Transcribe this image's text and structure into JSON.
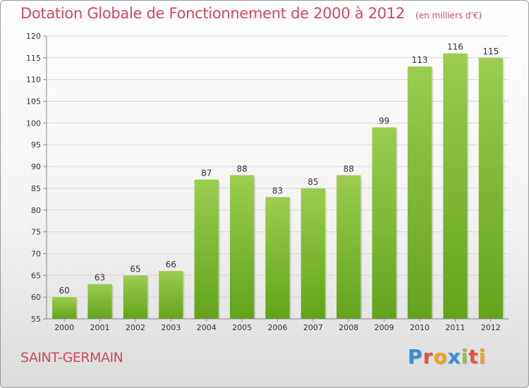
{
  "header": {
    "title": "Dotation Globale de Fonctionnement de 2000 à 2012",
    "unit": "(en milliers d'€)"
  },
  "footer": {
    "commune": "SAINT-GERMAIN",
    "logo": [
      "P",
      "r",
      "o",
      "x",
      "i",
      "t",
      "i"
    ],
    "logo_colors": [
      "#3a8fd6",
      "#e8533f",
      "#f2a21b",
      "#3a8fd6",
      "#8cc63f",
      "#e8533f",
      "#f2a21b"
    ]
  },
  "colors": {
    "bar_top": "#9ccd4f",
    "bar_bottom": "#63a31a",
    "grid": "#d6d6d6",
    "axis": "#888888",
    "text": "#333333"
  },
  "chart_data": {
    "type": "bar",
    "categories": [
      "2000",
      "2001",
      "2002",
      "2003",
      "2004",
      "2005",
      "2006",
      "2007",
      "2008",
      "2009",
      "2010",
      "2011",
      "2012"
    ],
    "values": [
      60,
      63,
      65,
      66,
      87,
      88,
      83,
      85,
      88,
      99,
      113,
      116,
      115
    ],
    "ylim": [
      55,
      120
    ],
    "yticks": [
      55,
      60,
      65,
      70,
      75,
      80,
      85,
      90,
      95,
      100,
      105,
      110,
      115,
      120
    ],
    "grid": true,
    "xlabel": "",
    "ylabel": ""
  }
}
